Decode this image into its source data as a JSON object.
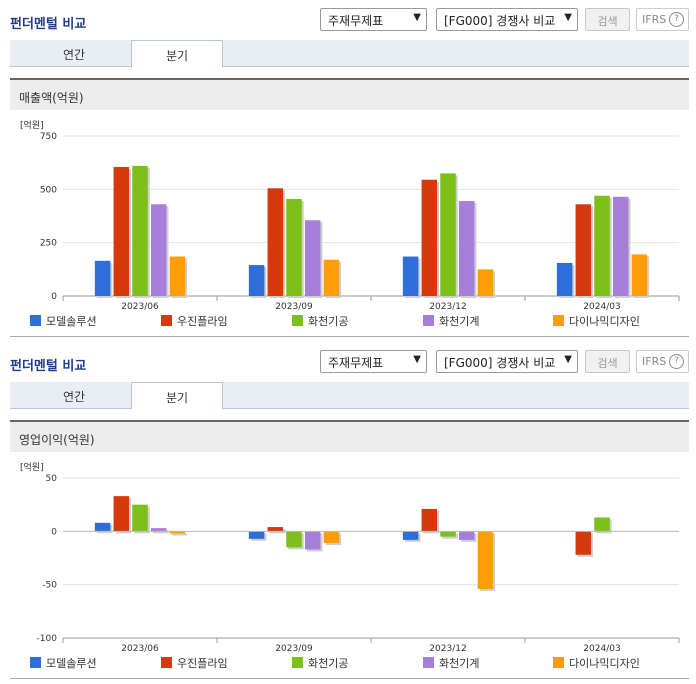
{
  "panels": [
    {
      "header": {
        "title": "펀더멘털 비교",
        "select1": "주재무제표",
        "select2": "[FG000] 경쟁사 비교",
        "search_label": "검색",
        "ifrs_label": "IFRS",
        "help": "?"
      },
      "tabs": [
        {
          "label": "연간",
          "active": false
        },
        {
          "label": "분기",
          "active": true
        }
      ],
      "section_title": "매출액(억원)",
      "unit": "[억원]"
    },
    {
      "header": {
        "title": "펀더멘털 비교",
        "select1": "주재무제표",
        "select2": "[FG000] 경쟁사 비교",
        "search_label": "검색",
        "ifrs_label": "IFRS",
        "help": "?"
      },
      "tabs": [
        {
          "label": "연간",
          "active": false
        },
        {
          "label": "분기",
          "active": true
        }
      ],
      "section_title": "영업이익(억원)",
      "unit": "[억원]"
    }
  ],
  "colors": {
    "title": "#1f3c88",
    "series": [
      "#2e6ed8",
      "#d63a0c",
      "#7cc019",
      "#a57fd9",
      "#ff9d0b"
    ]
  },
  "chart_data": [
    {
      "type": "bar",
      "categories": [
        "2023/06",
        "2023/09",
        "2023/12",
        "2024/03"
      ],
      "series": [
        {
          "name": "모델솔루션",
          "values": [
            165,
            145,
            185,
            155
          ]
        },
        {
          "name": "우진플라임",
          "values": [
            605,
            505,
            545,
            430
          ]
        },
        {
          "name": "화천기공",
          "values": [
            610,
            455,
            575,
            470
          ]
        },
        {
          "name": "화천기계",
          "values": [
            430,
            355,
            445,
            465
          ]
        },
        {
          "name": "다이나믹디자인",
          "values": [
            185,
            170,
            125,
            195
          ]
        }
      ],
      "ylabel": "[억원]",
      "ylim": [
        0,
        750
      ],
      "yticks": [
        0,
        250,
        500,
        750
      ],
      "grid": true,
      "legend": "bottom"
    },
    {
      "type": "bar",
      "categories": [
        "2023/06",
        "2023/09",
        "2023/12",
        "2024/03"
      ],
      "series": [
        {
          "name": "모델솔루션",
          "values": [
            8,
            -7,
            -8,
            0
          ]
        },
        {
          "name": "우진플라임",
          "values": [
            33,
            4,
            21,
            -22
          ]
        },
        {
          "name": "화천기공",
          "values": [
            25,
            -15,
            -5,
            13
          ]
        },
        {
          "name": "화천기계",
          "values": [
            3,
            -17,
            -8,
            0
          ]
        },
        {
          "name": "다이나믹디자인",
          "values": [
            -2,
            -11,
            -54,
            0
          ]
        }
      ],
      "ylabel": "[억원]",
      "ylim": [
        -100,
        50
      ],
      "yticks": [
        -100,
        -50,
        0,
        50
      ],
      "grid": true,
      "legend": "bottom"
    }
  ]
}
